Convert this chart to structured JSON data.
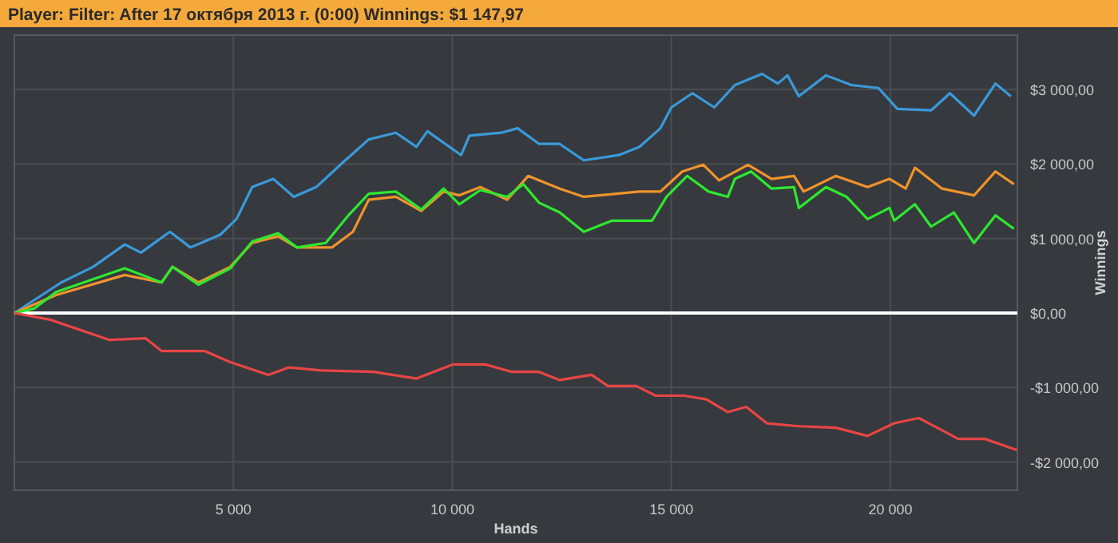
{
  "chart_data": {
    "type": "line",
    "title": "Player: Filter: After 17 октября 2013 г. (0:00) Winnings: $1 147,97",
    "xlabel": "Hands",
    "ylabel": "Winnings",
    "xlim": [
      0,
      22900
    ],
    "ylim": [
      -2380,
      3730
    ],
    "xticks": [
      {
        "value": 5000,
        "label": "5 000"
      },
      {
        "value": 10000,
        "label": "10 000"
      },
      {
        "value": 15000,
        "label": "15 000"
      },
      {
        "value": 20000,
        "label": "20 000"
      }
    ],
    "yticks": [
      {
        "value": -2000,
        "label": "-$2 000,00"
      },
      {
        "value": -1000,
        "label": "-$1 000,00"
      },
      {
        "value": 0,
        "label": "$0,00"
      },
      {
        "value": 1000,
        "label": "$1 000,00"
      },
      {
        "value": 2000,
        "label": "$2 000,00"
      },
      {
        "value": 3000,
        "label": "$3 000,00"
      }
    ],
    "grid": true,
    "marker": "none",
    "line_style": "solid",
    "ref_lines": [
      {
        "axis": "y",
        "value": 0,
        "color": "#ffffff"
      }
    ],
    "series": [
      {
        "color": "#3a9ad9",
        "x": [
          0,
          1070,
          1800,
          2520,
          2890,
          3550,
          4020,
          4700,
          5070,
          5430,
          5910,
          6380,
          6890,
          7480,
          8090,
          8710,
          9180,
          9430,
          10200,
          10390,
          11120,
          11490,
          11980,
          12450,
          13000,
          13800,
          14270,
          14750,
          15000,
          15480,
          15980,
          16450,
          17070,
          17430,
          17650,
          17910,
          18530,
          19110,
          19730,
          20160,
          20930,
          21360,
          21910,
          22400,
          22750
        ],
        "values": [
          0,
          410,
          620,
          920,
          810,
          1090,
          880,
          1050,
          1260,
          1690,
          1800,
          1560,
          1690,
          2010,
          2330,
          2420,
          2230,
          2440,
          2120,
          2380,
          2420,
          2480,
          2270,
          2270,
          2050,
          2120,
          2230,
          2480,
          2760,
          2950,
          2760,
          3060,
          3210,
          3080,
          3190,
          2910,
          3190,
          3060,
          3020,
          2740,
          2720,
          2950,
          2650,
          3080,
          2910
        ]
      },
      {
        "color": "#f0932b",
        "x": [
          0,
          950,
          2520,
          3360,
          3610,
          4200,
          4930,
          5430,
          6020,
          6450,
          7250,
          7730,
          8090,
          8710,
          9290,
          9800,
          10160,
          10640,
          11250,
          11730,
          12450,
          13000,
          14270,
          14750,
          15250,
          15730,
          16090,
          16750,
          17290,
          17800,
          18020,
          18750,
          19480,
          19980,
          20350,
          20560,
          21180,
          21910,
          22400,
          22820
        ],
        "values": [
          0,
          240,
          510,
          410,
          620,
          410,
          620,
          940,
          1030,
          880,
          880,
          1090,
          1520,
          1560,
          1370,
          1630,
          1580,
          1690,
          1520,
          1840,
          1670,
          1560,
          1630,
          1630,
          1900,
          1990,
          1780,
          1990,
          1800,
          1840,
          1630,
          1840,
          1690,
          1800,
          1670,
          1950,
          1670,
          1580,
          1900,
          1730
        ]
      },
      {
        "color": "#2ee82e",
        "x": [
          0,
          450,
          950,
          2520,
          3360,
          3610,
          4200,
          4930,
          5430,
          6020,
          6450,
          7110,
          7610,
          8090,
          8710,
          9290,
          9800,
          10160,
          10640,
          11250,
          11620,
          11980,
          12450,
          13000,
          13650,
          14560,
          14890,
          15360,
          15850,
          16290,
          16450,
          16820,
          17290,
          17800,
          17910,
          18530,
          19000,
          19480,
          19980,
          20090,
          20560,
          20930,
          21450,
          21910,
          22400,
          22820
        ],
        "values": [
          0,
          60,
          280,
          600,
          410,
          620,
          380,
          600,
          960,
          1070,
          880,
          940,
          1300,
          1600,
          1630,
          1390,
          1670,
          1460,
          1650,
          1560,
          1730,
          1480,
          1350,
          1090,
          1240,
          1240,
          1560,
          1840,
          1630,
          1560,
          1800,
          1900,
          1670,
          1690,
          1410,
          1690,
          1560,
          1260,
          1410,
          1240,
          1460,
          1160,
          1350,
          940,
          1310,
          1130
        ]
      },
      {
        "color": "#e84545",
        "x": [
          0,
          820,
          2160,
          3000,
          3360,
          4340,
          4930,
          5800,
          6270,
          7000,
          8200,
          9180,
          10020,
          10750,
          11360,
          11980,
          12450,
          13180,
          13550,
          14200,
          14640,
          15290,
          15800,
          16290,
          16710,
          17180,
          17910,
          18750,
          19480,
          20090,
          20650,
          21070,
          21550,
          22160,
          22890
        ],
        "values": [
          0,
          -90,
          -360,
          -340,
          -510,
          -510,
          -660,
          -830,
          -730,
          -770,
          -790,
          -880,
          -690,
          -690,
          -790,
          -790,
          -900,
          -830,
          -980,
          -980,
          -1110,
          -1110,
          -1160,
          -1330,
          -1260,
          -1480,
          -1520,
          -1540,
          -1650,
          -1480,
          -1410,
          -1540,
          -1690,
          -1690,
          -1840
        ]
      }
    ]
  }
}
